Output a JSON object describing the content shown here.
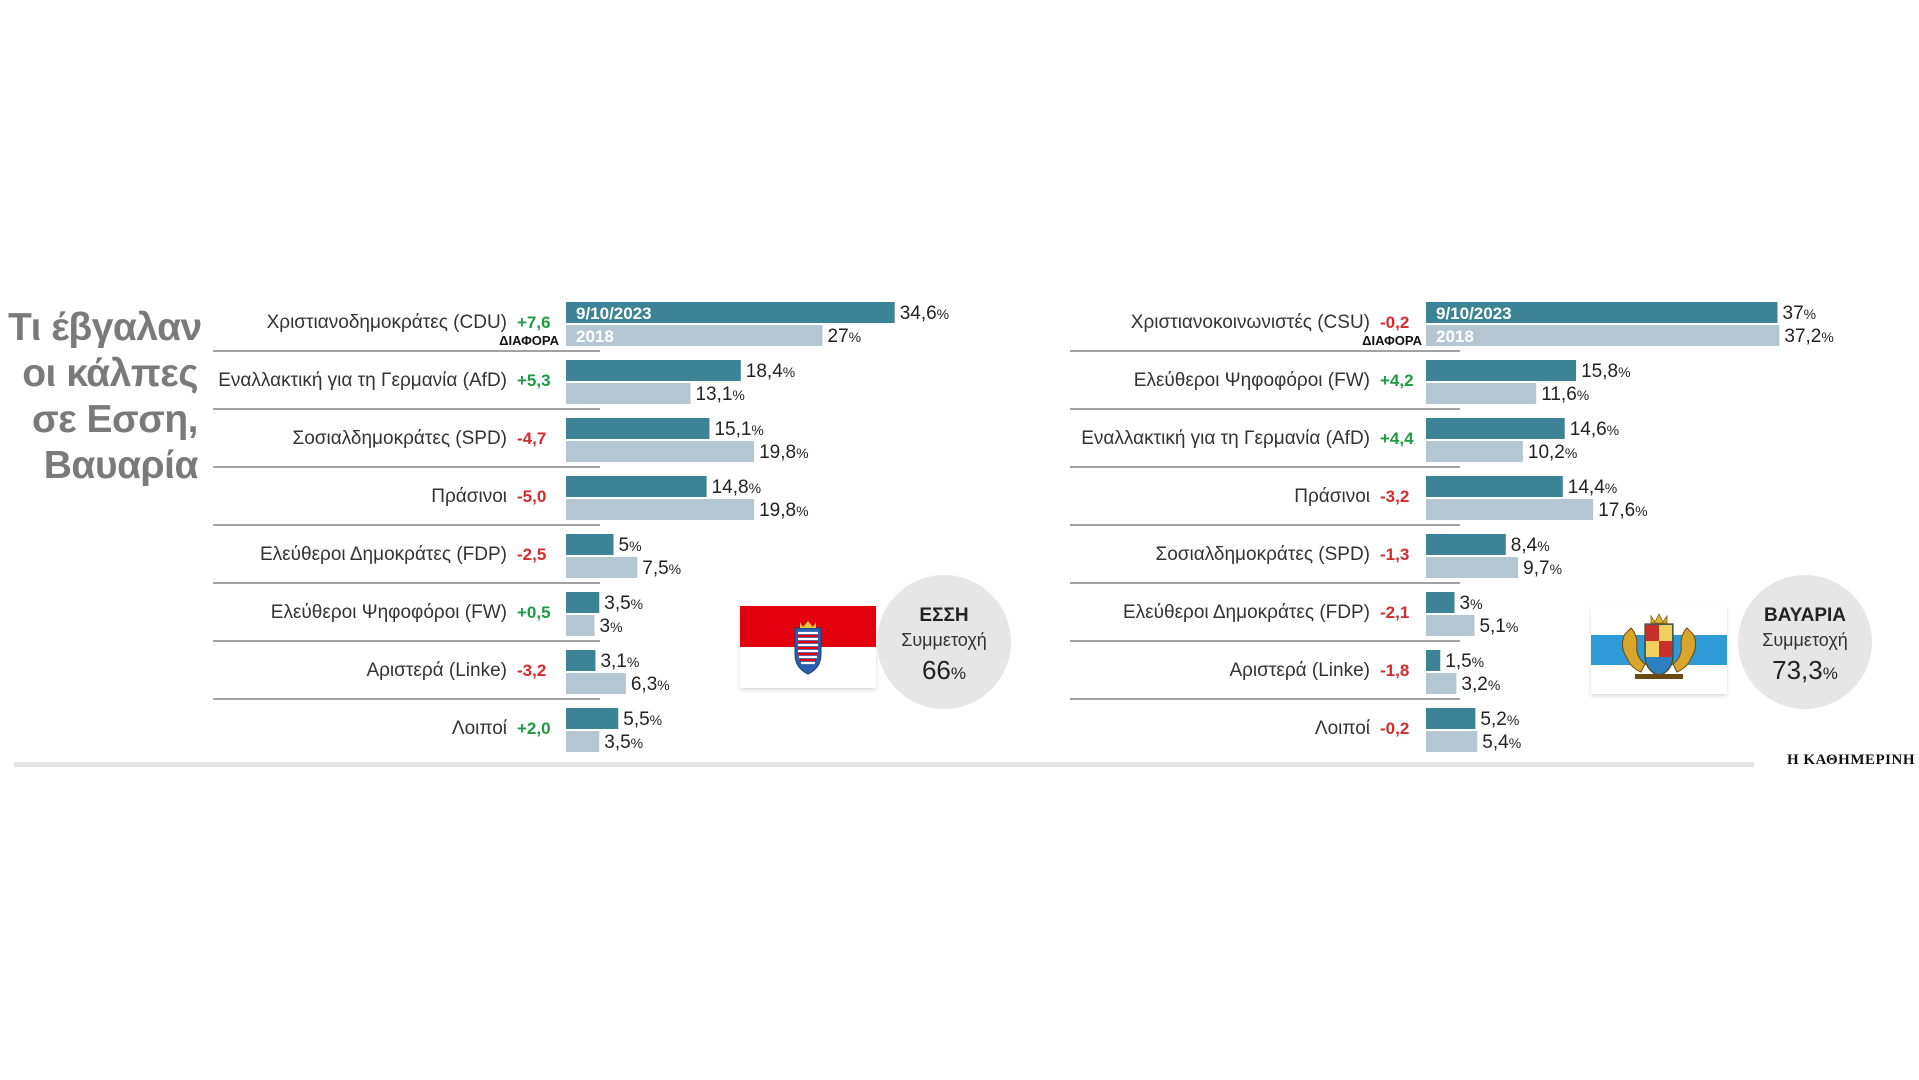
{
  "title": [
    "Τι έβγαλαν",
    "οι κάλπες",
    "σε Εσση,",
    "Βαυαρία"
  ],
  "source": "Η ΚΑΘΗΜΕΡΙΝΗ",
  "diff_header": "ΔΙΑΦΟΡΑ",
  "colors": {
    "current": "#3b8395",
    "previous": "#b3c6d2",
    "positive": "#1e9b44",
    "negative": "#d52b2b"
  },
  "chart_data": [
    {
      "type": "bar",
      "region": "Εσση",
      "series": [
        {
          "name": "9/10/2023",
          "values": [
            34.6,
            18.4,
            15.1,
            14.8,
            5,
            3.5,
            3.1,
            5.5
          ]
        },
        {
          "name": "2018",
          "values": [
            27,
            13.1,
            19.8,
            19.8,
            7.5,
            3,
            6.3,
            3.5
          ]
        }
      ],
      "categories": [
        "Χριστιανοδημοκράτες (CDU)",
        "Εναλλακτική για τη Γερμανία (AfD)",
        "Σοσιαλδημοκράτες (SPD)",
        "Πράσινοι",
        "Ελεύθεροι Δημοκράτες (FDP)",
        "Ελεύθεροι Ψηφοφόροι (FW)",
        "Αριστερά (Linke)",
        "Λοιποί"
      ],
      "differences": [
        "+7,6",
        "+5,3",
        "-4,7",
        "-5,0",
        "-2,5",
        "+0,5",
        "-3,2",
        "+2,0"
      ],
      "current_labels": [
        "34,6",
        "18,4",
        "15,1",
        "14,8",
        "5",
        "3,5",
        "3,1",
        "5,5"
      ],
      "previous_labels": [
        "27",
        "13,1",
        "19,8",
        "19,8",
        "7,5",
        "3",
        "6,3",
        "3,5"
      ],
      "turnout_label": "ΕΣΣΗ",
      "turnout_text": "Συμμετοχή",
      "turnout_value": "66",
      "flag": "hesse-flag"
    },
    {
      "type": "bar",
      "region": "Βαυαρία",
      "series": [
        {
          "name": "9/10/2023",
          "values": [
            37,
            15.8,
            14.6,
            14.4,
            8.4,
            3,
            1.5,
            5.2
          ]
        },
        {
          "name": "2018",
          "values": [
            37.2,
            11.6,
            10.2,
            17.6,
            9.7,
            5.1,
            3.2,
            5.4
          ]
        }
      ],
      "categories": [
        "Χριστιανοκοινωνιστές (CSU)",
        "Ελεύθεροι Ψηφοφόροι (FW)",
        "Εναλλακτική για τη Γερμανία (AfD)",
        "Πράσινοι",
        "Σοσιαλδημοκράτες (SPD)",
        "Ελεύθεροι Δημοκράτες (FDP)",
        "Αριστερά (Linke)",
        "Λοιποί"
      ],
      "differences": [
        "-0,2",
        "+4,2",
        "+4,4",
        "-3,2",
        "-1,3",
        "-2,1",
        "-1,8",
        "-0,2"
      ],
      "current_labels": [
        "37",
        "15,8",
        "14,6",
        "14,4",
        "8,4",
        "3",
        "1,5",
        "5,2"
      ],
      "previous_labels": [
        "37,2",
        "11,6",
        "10,2",
        "17,6",
        "9,7",
        "5,1",
        "3,2",
        "5,4"
      ],
      "turnout_label": "ΒΑΥΑΡΙΑ",
      "turnout_text": "Συμμετοχή",
      "turnout_value": "73,3",
      "flag": "bavaria-flag"
    }
  ],
  "percent_sign": "%"
}
